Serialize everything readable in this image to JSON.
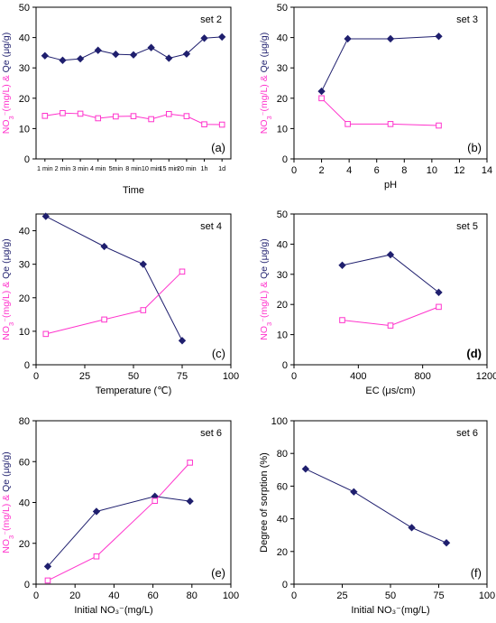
{
  "figure": {
    "colors": {
      "qe": "#1f1f6e",
      "no3": "#ff33cc",
      "axis": "#000000"
    },
    "marker_shapes": {
      "qe": "filled-diamond",
      "no3": "open-square"
    }
  },
  "chart_data": [
    {
      "id": "a",
      "type": "line",
      "set_label": "set 2",
      "panel_label": "(a)",
      "xlabel": "Time",
      "x_is_categorical": true,
      "categories": [
        "1 min",
        "2 min",
        "3 min",
        "4 min",
        "5min",
        "8 min",
        "10 min",
        "15 min",
        "20 min",
        "1h",
        "1d"
      ],
      "xlim": [
        0.5,
        11.5
      ],
      "ylim": [
        0,
        50
      ],
      "yticks": [
        0,
        10,
        20,
        30,
        40,
        50
      ],
      "series": [
        {
          "key": "qe",
          "values": [
            34.0,
            32.5,
            33.0,
            35.8,
            34.5,
            34.3,
            36.7,
            33.2,
            34.6,
            39.8,
            40.2
          ]
        },
        {
          "key": "no3",
          "values": [
            14.2,
            15.1,
            14.9,
            13.4,
            14.0,
            14.1,
            13.1,
            14.8,
            14.1,
            11.4,
            11.3
          ]
        }
      ]
    },
    {
      "id": "b",
      "type": "line",
      "set_label": "set 3",
      "panel_label": "(b)",
      "xlabel": "pH",
      "xlim": [
        0,
        14
      ],
      "xticks": [
        0,
        2,
        4,
        6,
        8,
        10,
        12,
        14
      ],
      "ylim": [
        0,
        50
      ],
      "yticks": [
        0,
        10,
        20,
        30,
        40,
        50
      ],
      "series": [
        {
          "key": "qe",
          "x": [
            2,
            3.9,
            7,
            10.5
          ],
          "values": [
            22.3,
            39.6,
            39.6,
            40.4
          ]
        },
        {
          "key": "no3",
          "x": [
            2,
            3.9,
            7,
            10.5
          ],
          "values": [
            20.0,
            11.5,
            11.5,
            11.0
          ]
        }
      ]
    },
    {
      "id": "c",
      "type": "line",
      "set_label": "set 4",
      "panel_label": "(c)",
      "xlabel": "Temperature (℃)",
      "xlim": [
        0,
        100
      ],
      "xticks": [
        0,
        25,
        50,
        75,
        100
      ],
      "ylim": [
        0,
        45
      ],
      "yticks": [
        0,
        10,
        20,
        30,
        40
      ],
      "series": [
        {
          "key": "qe",
          "x": [
            5,
            35,
            55,
            75
          ],
          "values": [
            44.3,
            35.3,
            30.0,
            7.2
          ]
        },
        {
          "key": "no3",
          "x": [
            5,
            35,
            55,
            75
          ],
          "values": [
            9.2,
            13.5,
            16.3,
            27.8
          ]
        }
      ]
    },
    {
      "id": "d",
      "type": "line",
      "set_label": "set 5",
      "panel_label": "(d)",
      "xlabel": "EC (μs/cm)",
      "xlim": [
        0,
        1200
      ],
      "xticks": [
        0,
        400,
        800,
        1200
      ],
      "ylim": [
        0,
        50
      ],
      "yticks": [
        0,
        10,
        20,
        30,
        40,
        50
      ],
      "series": [
        {
          "key": "qe",
          "x": [
            300,
            600,
            900
          ],
          "values": [
            33.0,
            36.5,
            24.0
          ]
        },
        {
          "key": "no3",
          "x": [
            300,
            600,
            900
          ],
          "values": [
            14.8,
            13.0,
            19.2
          ]
        }
      ]
    },
    {
      "id": "e",
      "type": "line",
      "set_label": "set 6",
      "panel_label": "(e)",
      "xlabel": "Initial NO₃⁻(mg/L)",
      "xlim": [
        0,
        100
      ],
      "xticks": [
        0,
        20,
        40,
        60,
        80,
        100
      ],
      "ylim": [
        0,
        80
      ],
      "yticks": [
        0,
        20,
        40,
        60,
        80
      ],
      "series": [
        {
          "key": "qe",
          "x": [
            6,
            31,
            61,
            79
          ],
          "values": [
            8.7,
            35.6,
            43.0,
            40.6
          ]
        },
        {
          "key": "no3",
          "x": [
            6,
            31,
            61,
            79
          ],
          "values": [
            1.8,
            13.6,
            40.8,
            59.5
          ]
        }
      ]
    },
    {
      "id": "f",
      "type": "line",
      "set_label": "set 6",
      "panel_label": "(f)",
      "xlabel": "Initial NO₃⁻(mg/L)",
      "ylabel": "Degree of sorption (%)",
      "xlim": [
        0,
        100
      ],
      "xticks": [
        0,
        25,
        50,
        75,
        100
      ],
      "ylim": [
        0,
        100
      ],
      "yticks": [
        0,
        20,
        40,
        60,
        80,
        100
      ],
      "series": [
        {
          "key": "qe",
          "x": [
            6,
            31,
            61,
            79
          ],
          "values": [
            70.5,
            56.5,
            34.6,
            25.3
          ]
        }
      ]
    }
  ]
}
